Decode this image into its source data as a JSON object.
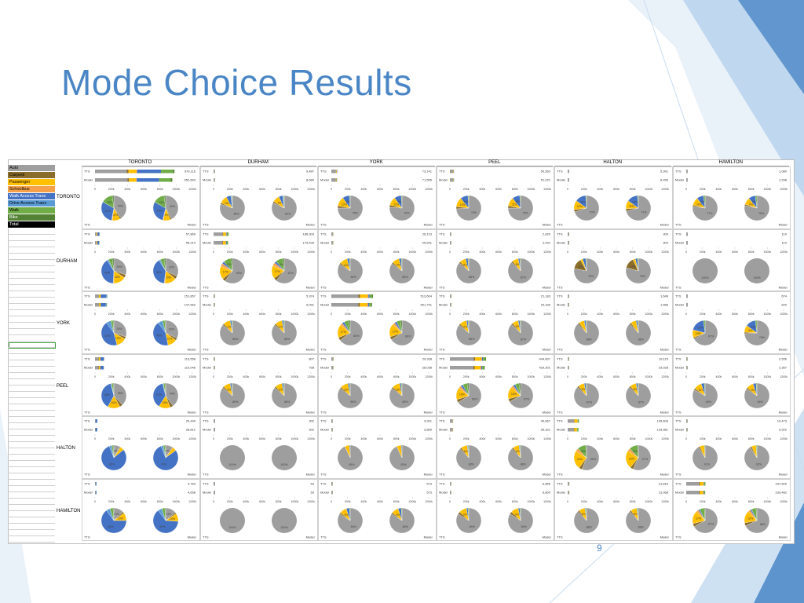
{
  "slide": {
    "title": "Mode Choice Results",
    "number": "9"
  },
  "colors": {
    "accent": "#4a86c5",
    "Auto": "#9e9e9e",
    "Carpool": "#8a6d2b",
    "Passenger": "#ffc000",
    "Schoolbus": "#f4a14a",
    "Walk Access Transit": "#4472c4",
    "Drive Access Transit": "#5b9bd5",
    "Walk": "#70ad47",
    "Bike": "#548235",
    "Total": "#000000"
  },
  "chart_data": {
    "type": "pie",
    "legend": {
      "placement": "left",
      "entries": [
        "Auto",
        "Carpool",
        "Passenger",
        "Schoolbus",
        "Walk Access Trans",
        "Drive Access Trans",
        "Walk",
        "Bike",
        "Total"
      ]
    },
    "origins": [
      "TORONTO",
      "DURHAM",
      "YORK",
      "PEEL",
      "HALTON",
      "HAMILTON"
    ],
    "destinations": [
      "TORONTO",
      "DURHAM",
      "YORK",
      "PEEL",
      "HALTON",
      "HAMILTON"
    ],
    "bar_axis_ticks": [
      "0",
      "200k",
      "400k",
      "600k",
      "800k",
      "1000k",
      "1200k"
    ],
    "series_labels": [
      "TTS",
      "Model"
    ],
    "cells": [
      [
        {
          "tts": "979,116",
          "model": "952,893",
          "tts_pie": [
            40,
            2,
            10,
            1,
            30,
            0,
            15,
            2
          ],
          "model_pie": [
            42,
            2,
            9,
            1,
            29,
            0,
            15,
            2
          ]
        },
        {
          "tts": "9,487",
          "model": "8,680",
          "tts_pie": [
            80,
            2,
            10,
            0,
            6,
            1,
            1,
            0
          ],
          "model_pie": [
            82,
            2,
            9,
            0,
            5,
            1,
            1,
            0
          ]
        },
        {
          "tts": "73,141",
          "model": "71,555",
          "tts_pie": [
            75,
            3,
            12,
            0,
            9,
            0,
            1,
            0
          ],
          "model_pie": [
            76,
            3,
            11,
            0,
            9,
            0,
            1,
            0
          ]
        },
        {
          "tts": "50,563",
          "model": "51,021",
          "tts_pie": [
            74,
            3,
            12,
            0,
            10,
            0,
            1,
            0
          ],
          "model_pie": [
            75,
            3,
            11,
            0,
            10,
            0,
            1,
            0
          ]
        },
        {
          "tts": "5,991",
          "model": "6,456",
          "tts_pie": [
            70,
            3,
            12,
            0,
            14,
            0,
            1,
            0
          ],
          "model_pie": [
            71,
            3,
            11,
            0,
            14,
            0,
            1,
            0
          ]
        },
        {
          "tts": "1,080",
          "model": "1,298",
          "tts_pie": [
            77,
            2,
            10,
            0,
            9,
            0,
            2,
            0
          ],
          "model_pie": [
            78,
            2,
            9,
            0,
            9,
            0,
            2,
            0
          ]
        }
      ],
      [
        {
          "tts": "57,869",
          "model": "55,214",
          "tts_pie": [
            30,
            4,
            16,
            1,
            40,
            2,
            5,
            2
          ],
          "model_pie": [
            32,
            4,
            15,
            1,
            39,
            2,
            5,
            2
          ]
        },
        {
          "tts": "186,303",
          "model": "179,439",
          "tts_pie": [
            60,
            4,
            17,
            4,
            3,
            0,
            10,
            2
          ],
          "model_pie": [
            61,
            4,
            17,
            4,
            3,
            0,
            9,
            2
          ]
        },
        {
          "tts": "26,123",
          "model": "25,641",
          "tts_pie": [
            84,
            2,
            10,
            0,
            3,
            0,
            1,
            0
          ],
          "model_pie": [
            85,
            2,
            9,
            0,
            3,
            0,
            1,
            0
          ]
        },
        {
          "tts": "2,820",
          "model": "2,931",
          "tts_pie": [
            86,
            2,
            8,
            0,
            3,
            0,
            1,
            0
          ],
          "model_pie": [
            87,
            2,
            8,
            0,
            2,
            0,
            1,
            0
          ]
        },
        {
          "tts": "300",
          "model": "300",
          "tts_pie": [
            78,
            14,
            3,
            0,
            4,
            0,
            1,
            0
          ],
          "model_pie": [
            79,
            14,
            3,
            0,
            3,
            0,
            1,
            0
          ]
        },
        {
          "tts": "110",
          "model": "110",
          "tts_pie": [
            100,
            0,
            0,
            0,
            0,
            0,
            0,
            0
          ],
          "model_pie": [
            100,
            0,
            0,
            0,
            0,
            0,
            0,
            0
          ]
        }
      ],
      [
        {
          "tts": "151,857",
          "model": "147,562",
          "tts_pie": [
            30,
            3,
            13,
            0,
            44,
            6,
            3,
            1
          ],
          "model_pie": [
            32,
            3,
            12,
            0,
            43,
            6,
            3,
            1
          ]
        },
        {
          "tts": "5,374",
          "model": "5,091",
          "tts_pie": [
            86,
            2,
            9,
            0,
            2,
            0,
            1,
            0
          ],
          "model_pie": [
            86,
            2,
            9,
            0,
            2,
            0,
            1,
            0
          ]
        },
        {
          "tts": "513,604",
          "model": "501,741",
          "tts_pie": [
            65,
            4,
            17,
            3,
            3,
            0,
            6,
            2
          ],
          "model_pie": [
            66,
            4,
            17,
            3,
            3,
            0,
            5,
            2
          ]
        },
        {
          "tts": "21,183",
          "model": "20,339",
          "tts_pie": [
            86,
            2,
            9,
            0,
            2,
            0,
            1,
            0
          ],
          "model_pie": [
            87,
            2,
            8,
            0,
            2,
            0,
            1,
            0
          ]
        },
        {
          "tts": "1,646",
          "model": "1,566",
          "tts_pie": [
            88,
            2,
            7,
            0,
            2,
            0,
            1,
            0
          ],
          "model_pie": [
            88,
            2,
            7,
            0,
            2,
            0,
            1,
            0
          ]
        },
        {
          "tts": "674",
          "model": "620",
          "tts_pie": [
            67,
            2,
            10,
            0,
            19,
            0,
            2,
            0
          ],
          "model_pie": [
            74,
            2,
            9,
            0,
            13,
            0,
            2,
            0
          ]
        }
      ],
      [
        {
          "tts": "113,558",
          "model": "110,046",
          "tts_pie": [
            38,
            4,
            16,
            0,
            38,
            1,
            2,
            1
          ],
          "model_pie": [
            40,
            4,
            15,
            0,
            37,
            1,
            2,
            1
          ]
        },
        {
          "tts": "807",
          "model": "768",
          "tts_pie": [
            86,
            2,
            9,
            0,
            2,
            0,
            1,
            0
          ],
          "model_pie": [
            86,
            2,
            9,
            0,
            2,
            0,
            1,
            0
          ]
        },
        {
          "tts": "29,338",
          "model": "28,038",
          "tts_pie": [
            85,
            2,
            10,
            0,
            2,
            0,
            1,
            0
          ],
          "model_pie": [
            85,
            2,
            10,
            0,
            2,
            0,
            1,
            0
          ]
        },
        {
          "tts": "444,807",
          "model": "429,301",
          "tts_pie": [
            66,
            4,
            16,
            3,
            3,
            0,
            6,
            2
          ],
          "model_pie": [
            67,
            4,
            16,
            3,
            3,
            0,
            5,
            2
          ]
        },
        {
          "tts": "19,115",
          "model": "19,028",
          "tts_pie": [
            87,
            2,
            8,
            0,
            2,
            0,
            1,
            0
          ],
          "model_pie": [
            87,
            2,
            8,
            0,
            2,
            0,
            1,
            0
          ]
        },
        {
          "tts": "2,536",
          "model": "2,357",
          "tts_pie": [
            83,
            2,
            10,
            0,
            4,
            0,
            1,
            0
          ],
          "model_pie": [
            84,
            2,
            9,
            0,
            4,
            0,
            1,
            0
          ]
        }
      ],
      [
        {
          "tts": "29,449",
          "model": "28,812",
          "tts_pie": [
            8,
            1,
            5,
            0,
            80,
            3,
            2,
            1
          ],
          "model_pie": [
            9,
            1,
            5,
            0,
            79,
            3,
            2,
            1
          ]
        },
        {
          "tts": "302",
          "model": "302",
          "tts_pie": [
            100,
            0,
            0,
            0,
            0,
            0,
            0,
            0
          ],
          "model_pie": [
            100,
            0,
            0,
            0,
            0,
            0,
            0,
            0
          ]
        },
        {
          "tts": "3,921",
          "model": "3,869",
          "tts_pie": [
            93,
            0,
            6,
            0,
            1,
            0,
            0,
            0
          ],
          "model_pie": [
            93,
            0,
            6,
            0,
            1,
            0,
            0,
            0
          ]
        },
        {
          "tts": "40,667",
          "model": "39,321",
          "tts_pie": [
            88,
            2,
            8,
            0,
            1,
            0,
            1,
            0
          ],
          "model_pie": [
            88,
            2,
            8,
            0,
            1,
            0,
            1,
            0
          ]
        },
        {
          "tts": "139,609",
          "model": "133,981",
          "tts_pie": [
            56,
            4,
            24,
            4,
            0,
            0,
            11,
            1
          ],
          "model_pie": [
            57,
            4,
            23,
            4,
            0,
            0,
            11,
            1
          ]
        },
        {
          "tts": "10,473",
          "model": "9,922",
          "tts_pie": [
            91,
            2,
            6,
            0,
            0,
            0,
            1,
            0
          ],
          "model_pie": [
            91,
            2,
            6,
            0,
            0,
            0,
            1,
            0
          ]
        }
      ],
      [
        {
          "tts": "4,783",
          "model": "4,658",
          "tts_pie": [
            13,
            2,
            10,
            0,
            65,
            5,
            4,
            1
          ],
          "model_pie": [
            14,
            2,
            10,
            0,
            64,
            5,
            4,
            1
          ]
        },
        {
          "tts": "53",
          "model": "53",
          "tts_pie": [
            100,
            0,
            0,
            0,
            0,
            0,
            0,
            0
          ],
          "model_pie": [
            100,
            0,
            0,
            0,
            0,
            0,
            0,
            0
          ]
        },
        {
          "tts": "573",
          "model": "573",
          "tts_pie": [
            84,
            2,
            9,
            0,
            4,
            0,
            1,
            0
          ],
          "model_pie": [
            84,
            2,
            9,
            0,
            4,
            0,
            1,
            0
          ]
        },
        {
          "tts": "6,856",
          "model": "6,800",
          "tts_pie": [
            84,
            3,
            10,
            0,
            2,
            0,
            1,
            0
          ],
          "model_pie": [
            84,
            3,
            10,
            0,
            2,
            0,
            1,
            0
          ]
        },
        {
          "tts": "21,816",
          "model": "21,068",
          "tts_pie": [
            88,
            2,
            8,
            0,
            1,
            0,
            1,
            0
          ],
          "model_pie": [
            88,
            2,
            8,
            0,
            1,
            0,
            1,
            0
          ]
        },
        {
          "tts": "237,609",
          "model": "233,482",
          "tts_pie": [
            67,
            4,
            17,
            3,
            2,
            0,
            6,
            1
          ],
          "model_pie": [
            68,
            4,
            16,
            3,
            2,
            0,
            6,
            1
          ]
        }
      ]
    ]
  }
}
